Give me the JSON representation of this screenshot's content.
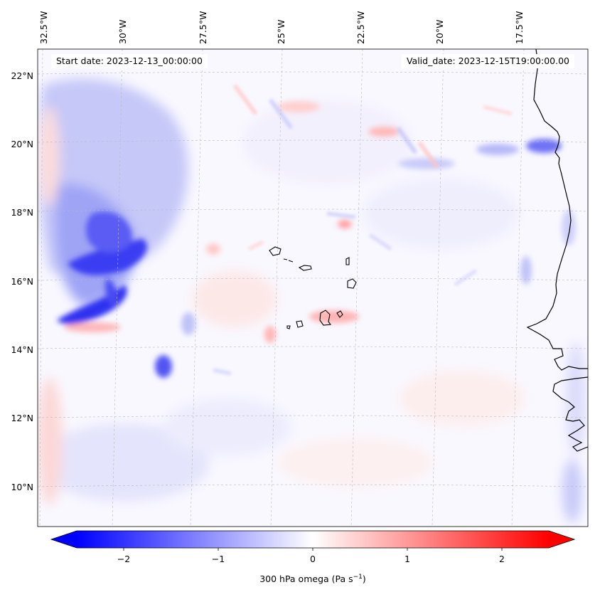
{
  "header": {
    "start_date": "Start date: 2023-12-13_00:00:00",
    "valid_date": "Valid_date: 2023-12-15T19:00:00.00"
  },
  "longitude_labels": [
    "32.5°W",
    "30°W",
    "27.5°W",
    "25°W",
    "22.5°W",
    "20°W",
    "17.5°W"
  ],
  "latitude_labels": [
    "22°N",
    "20°N",
    "18°N",
    "16°N",
    "14°N",
    "12°N",
    "10°N"
  ],
  "colorbar": {
    "title": "300 hPa omega (Pa s",
    "title_unit_exp": "−1",
    "title_close": ")",
    "tick_labels": [
      "−2",
      "−1",
      "0",
      "1",
      "2"
    ],
    "range": [
      -2.5,
      2.5
    ],
    "cmap": "bwr",
    "negative_color": "#0000ff",
    "zero_color": "#ffffff",
    "positive_color": "#ff0000"
  },
  "map": {
    "field": "300 hPa omega",
    "lon_range": [
      "32.5°W",
      "16°W"
    ],
    "lat_range": [
      "9°N",
      "22.7°N"
    ],
    "gridlines": true,
    "features": [
      "Cape Verde islands",
      "West African coastline"
    ]
  }
}
